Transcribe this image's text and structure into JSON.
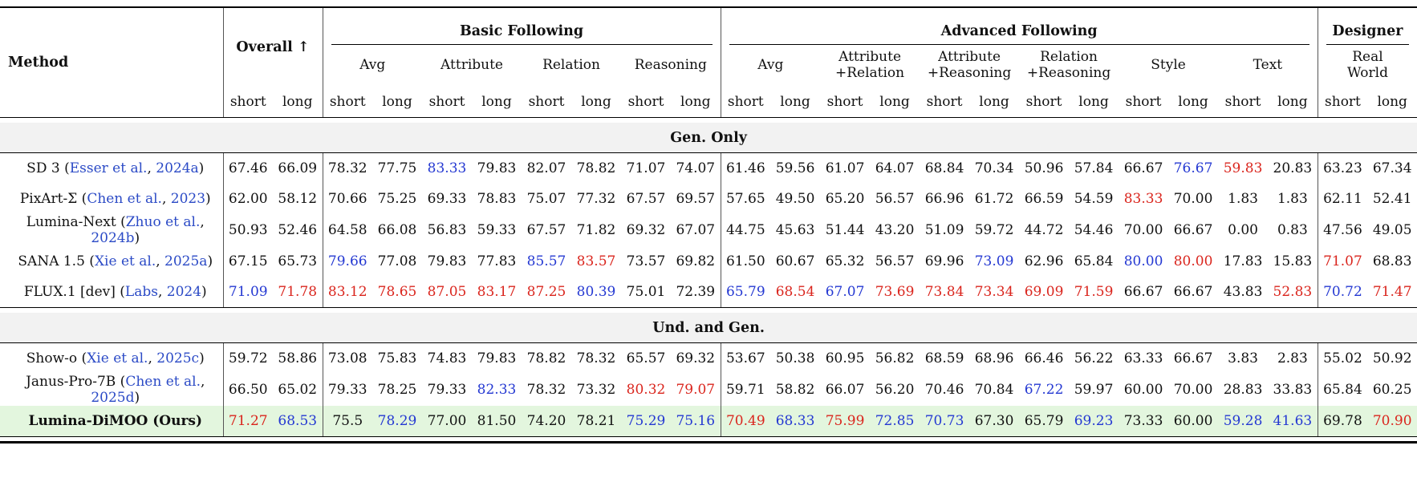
{
  "colors": {
    "best": "#da251d",
    "second": "#2438d2",
    "link": "#2b4ac6",
    "band": "#f2f2f2",
    "hl": "#e3f6de"
  },
  "header": {
    "method_label": "Method",
    "overall_label": "Overall ↑",
    "pair": [
      "short",
      "long"
    ],
    "groups": [
      {
        "label": "Basic Following",
        "cols": 8,
        "subs": [
          "Avg",
          "Attribute",
          "Relation",
          "Reasoning"
        ]
      },
      {
        "label": "Advanced Following",
        "cols": 12,
        "subs": [
          "Avg",
          "Attribute\n+Relation",
          "Attribute\n+Reasoning",
          "Relation\n+Reasoning",
          "Style",
          "Text"
        ]
      },
      {
        "label": "Designer",
        "cols": 2,
        "subs": [
          "Real\nWorld"
        ]
      }
    ]
  },
  "sections": [
    {
      "title": "Gen. Only",
      "rows": [
        {
          "method": "SD 3",
          "authors": "Esser et al.",
          "year": "2024a",
          "values": [
            "67.46",
            "66.09",
            "78.32",
            "77.75",
            "83.33",
            "79.83",
            "82.07",
            "78.82",
            "71.07",
            "74.07",
            "61.46",
            "59.56",
            "61.07",
            "64.07",
            "68.84",
            "70.34",
            "50.96",
            "57.84",
            "66.67",
            "76.67",
            "59.83",
            "20.83",
            "63.23",
            "67.34"
          ],
          "colors": [
            0,
            0,
            0,
            0,
            1,
            0,
            0,
            0,
            0,
            0,
            0,
            0,
            0,
            0,
            0,
            0,
            0,
            0,
            0,
            1,
            2,
            0,
            0,
            0
          ]
        },
        {
          "method": "PixArt-Σ",
          "authors": "Chen et al.",
          "year": "2023",
          "values": [
            "62.00",
            "58.12",
            "70.66",
            "75.25",
            "69.33",
            "78.83",
            "75.07",
            "77.32",
            "67.57",
            "69.57",
            "57.65",
            "49.50",
            "65.20",
            "56.57",
            "66.96",
            "61.72",
            "66.59",
            "54.59",
            "83.33",
            "70.00",
            "1.83",
            "1.83",
            "62.11",
            "52.41"
          ],
          "colors": [
            0,
            0,
            0,
            0,
            0,
            0,
            0,
            0,
            0,
            0,
            0,
            0,
            0,
            0,
            0,
            0,
            0,
            0,
            2,
            0,
            0,
            0,
            0,
            0
          ]
        },
        {
          "method": "Lumina-Next",
          "authors": "Zhuo et al.",
          "year": "2024b",
          "values": [
            "50.93",
            "52.46",
            "64.58",
            "66.08",
            "56.83",
            "59.33",
            "67.57",
            "71.82",
            "69.32",
            "67.07",
            "44.75",
            "45.63",
            "51.44",
            "43.20",
            "51.09",
            "59.72",
            "44.72",
            "54.46",
            "70.00",
            "66.67",
            "0.00",
            "0.83",
            "47.56",
            "49.05"
          ],
          "colors": [
            0,
            0,
            0,
            0,
            0,
            0,
            0,
            0,
            0,
            0,
            0,
            0,
            0,
            0,
            0,
            0,
            0,
            0,
            0,
            0,
            0,
            0,
            0,
            0
          ]
        },
        {
          "method": "SANA 1.5",
          "authors": "Xie et al.",
          "year": "2025a",
          "values": [
            "67.15",
            "65.73",
            "79.66",
            "77.08",
            "79.83",
            "77.83",
            "85.57",
            "83.57",
            "73.57",
            "69.82",
            "61.50",
            "60.67",
            "65.32",
            "56.57",
            "69.96",
            "73.09",
            "62.96",
            "65.84",
            "80.00",
            "80.00",
            "17.83",
            "15.83",
            "71.07",
            "68.83"
          ],
          "colors": [
            0,
            0,
            1,
            0,
            0,
            0,
            1,
            2,
            0,
            0,
            0,
            0,
            0,
            0,
            0,
            1,
            0,
            0,
            1,
            2,
            0,
            0,
            2,
            0
          ]
        },
        {
          "method": "FLUX.1 [dev]",
          "authors": "Labs",
          "year": "2024",
          "values": [
            "71.09",
            "71.78",
            "83.12",
            "78.65",
            "87.05",
            "83.17",
            "87.25",
            "80.39",
            "75.01",
            "72.39",
            "65.79",
            "68.54",
            "67.07",
            "73.69",
            "73.84",
            "73.34",
            "69.09",
            "71.59",
            "66.67",
            "66.67",
            "43.83",
            "52.83",
            "70.72",
            "71.47"
          ],
          "colors": [
            1,
            2,
            2,
            2,
            2,
            2,
            2,
            1,
            0,
            0,
            1,
            2,
            1,
            2,
            2,
            2,
            2,
            2,
            0,
            0,
            0,
            2,
            1,
            2
          ]
        }
      ]
    },
    {
      "title": "Und. and Gen.",
      "rows": [
        {
          "method": "Show-o",
          "authors": "Xie et al.",
          "year": "2025c",
          "values": [
            "59.72",
            "58.86",
            "73.08",
            "75.83",
            "74.83",
            "79.83",
            "78.82",
            "78.32",
            "65.57",
            "69.32",
            "53.67",
            "50.38",
            "60.95",
            "56.82",
            "68.59",
            "68.96",
            "66.46",
            "56.22",
            "63.33",
            "66.67",
            "3.83",
            "2.83",
            "55.02",
            "50.92"
          ],
          "colors": [
            0,
            0,
            0,
            0,
            0,
            0,
            0,
            0,
            0,
            0,
            0,
            0,
            0,
            0,
            0,
            0,
            0,
            0,
            0,
            0,
            0,
            0,
            0,
            0
          ]
        },
        {
          "method": "Janus-Pro-7B",
          "authors": "Chen et al.",
          "year": "2025d",
          "values": [
            "66.50",
            "65.02",
            "79.33",
            "78.25",
            "79.33",
            "82.33",
            "78.32",
            "73.32",
            "80.32",
            "79.07",
            "59.71",
            "58.82",
            "66.07",
            "56.20",
            "70.46",
            "70.84",
            "67.22",
            "59.97",
            "60.00",
            "70.00",
            "28.83",
            "33.83",
            "65.84",
            "60.25"
          ],
          "colors": [
            0,
            0,
            0,
            0,
            0,
            1,
            0,
            0,
            2,
            2,
            0,
            0,
            0,
            0,
            0,
            0,
            1,
            0,
            0,
            0,
            0,
            0,
            0,
            0
          ]
        },
        {
          "method": "Lumina-DiMOO (Ours)",
          "bold": true,
          "highlight": true,
          "values": [
            "71.27",
            "68.53",
            "75.5",
            "78.29",
            "77.00",
            "81.50",
            "74.20",
            "78.21",
            "75.29",
            "75.16",
            "70.49",
            "68.33",
            "75.99",
            "72.85",
            "70.73",
            "67.30",
            "65.79",
            "69.23",
            "73.33",
            "60.00",
            "59.28",
            "41.63",
            "69.78",
            "70.90"
          ],
          "colors": [
            2,
            1,
            0,
            1,
            0,
            0,
            0,
            0,
            1,
            1,
            2,
            1,
            2,
            1,
            1,
            0,
            0,
            1,
            0,
            0,
            1,
            1,
            0,
            2
          ]
        }
      ]
    }
  ]
}
